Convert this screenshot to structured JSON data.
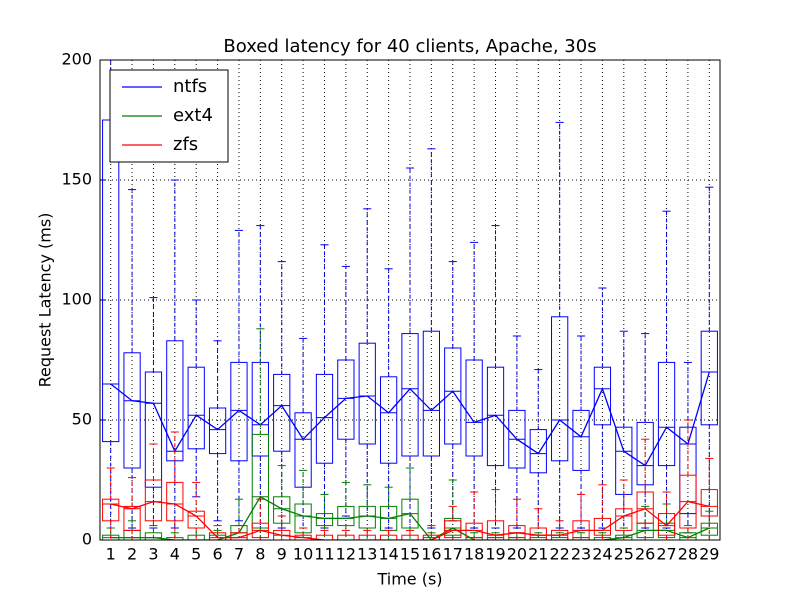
{
  "chart_data": {
    "type": "boxplot",
    "title": "Boxed latency for 40 clients, Apache, 30s",
    "x_label": "Time (s)",
    "y_label": "Request Latency (ms)",
    "categories": [
      "1",
      "2",
      "3",
      "4",
      "5",
      "6",
      "7",
      "8",
      "9",
      "10",
      "11",
      "12",
      "13",
      "14",
      "15",
      "16",
      "17",
      "18",
      "19",
      "20",
      "21",
      "22",
      "23",
      "24",
      "25",
      "26",
      "27",
      "28",
      "29"
    ],
    "ylim": [
      0,
      200
    ],
    "yticks": [
      0,
      50,
      100,
      150,
      200
    ],
    "grid": true,
    "legend": "upper left",
    "series": [
      {
        "name": "ntfs",
        "color": "#0000ff",
        "whisker_low": [
          5,
          5,
          5,
          5,
          18,
          8,
          8,
          5,
          5,
          5,
          5,
          10,
          10,
          5,
          5,
          5,
          8,
          5,
          5,
          5,
          5,
          5,
          5,
          5,
          5,
          5,
          5,
          3,
          5
        ],
        "q1": [
          41,
          30,
          22,
          33,
          38,
          36,
          33,
          35,
          37,
          22,
          32,
          42,
          40,
          32,
          35,
          35,
          40,
          35,
          31,
          30,
          28,
          33,
          29,
          48,
          19,
          23,
          31,
          11,
          48
        ],
        "median": [
          65,
          58,
          57,
          37,
          52,
          46,
          54,
          48,
          56,
          42,
          51,
          59,
          60,
          53,
          63,
          54,
          62,
          49,
          52,
          42,
          36,
          50,
          43,
          63,
          37,
          31,
          47,
          40,
          70
        ],
        "q3": [
          175,
          78,
          70,
          83,
          72,
          55,
          74,
          74,
          69,
          53,
          69,
          75,
          82,
          68,
          86,
          87,
          80,
          75,
          72,
          54,
          46,
          93,
          54,
          72,
          47,
          49,
          74,
          47,
          87
        ],
        "whisker_high": [
          200,
          146,
          101,
          150,
          100,
          83,
          129,
          131,
          116,
          84,
          123,
          114,
          138,
          113,
          155,
          163,
          116,
          124,
          131,
          85,
          71,
          174,
          85,
          105,
          87,
          86,
          137,
          74,
          147
        ]
      },
      {
        "name": "ext4",
        "color": "#008000",
        "whisker_low": [
          0,
          0,
          0,
          0,
          0,
          0,
          0,
          0,
          0,
          0,
          0,
          0,
          0,
          0,
          0,
          0,
          0,
          0,
          0,
          0,
          0,
          0,
          0,
          0,
          0,
          0,
          0,
          0,
          0
        ],
        "q1": [
          0,
          0,
          0,
          0,
          0,
          0,
          0,
          5,
          7,
          3,
          6,
          6,
          5,
          4,
          5,
          0,
          2,
          0,
          0,
          0,
          0,
          0,
          0,
          0,
          0,
          1,
          1,
          0,
          2
        ],
        "median": [
          1,
          1,
          1,
          0,
          0,
          0,
          3,
          18,
          13,
          10,
          9,
          9,
          10,
          9,
          11,
          0,
          5,
          0,
          0,
          0,
          0,
          0,
          0,
          0,
          1,
          4,
          4,
          1,
          5
        ],
        "q3": [
          2,
          4,
          3,
          1,
          2,
          2,
          6,
          44,
          18,
          15,
          11,
          14,
          14,
          14,
          17,
          1,
          9,
          1,
          1,
          1,
          1,
          1,
          1,
          1,
          2,
          7,
          7,
          3,
          7
        ],
        "whisker_high": [
          5,
          8,
          6,
          3,
          5,
          4,
          17,
          88,
          31,
          29,
          19,
          24,
          23,
          22,
          30,
          3,
          25,
          3,
          3,
          3,
          3,
          3,
          3,
          3,
          5,
          14,
          15,
          6,
          12
        ]
      },
      {
        "name": "zfs",
        "color": "#ff0000",
        "whisker_low": [
          0,
          0,
          0,
          0,
          0,
          0,
          0,
          0,
          0,
          0,
          0,
          0,
          0,
          0,
          0,
          0,
          0,
          0,
          0,
          0,
          0,
          0,
          0,
          0,
          0,
          0,
          0,
          0,
          0
        ],
        "q1": [
          8,
          4,
          8,
          8,
          5,
          0,
          0,
          1,
          0,
          0,
          0,
          0,
          0,
          0,
          0,
          0,
          1,
          1,
          1,
          1,
          0,
          0,
          1,
          2,
          4,
          7,
          2,
          5,
          10
        ],
        "median": [
          15,
          13,
          16,
          15,
          10,
          1,
          1,
          4,
          2,
          1,
          0,
          0,
          0,
          0,
          0,
          0,
          4,
          4,
          2,
          3,
          2,
          2,
          4,
          4,
          10,
          13,
          6,
          16,
          14
        ],
        "q3": [
          17,
          14,
          25,
          24,
          12,
          3,
          3,
          7,
          4,
          2,
          2,
          2,
          2,
          2,
          2,
          2,
          8,
          7,
          8,
          6,
          5,
          4,
          8,
          9,
          13,
          20,
          11,
          27,
          21
        ],
        "whisker_high": [
          30,
          26,
          40,
          45,
          24,
          6,
          6,
          17,
          10,
          5,
          4,
          4,
          4,
          4,
          4,
          6,
          14,
          20,
          21,
          17,
          13,
          8,
          19,
          23,
          25,
          42,
          20,
          50,
          34
        ]
      }
    ]
  }
}
